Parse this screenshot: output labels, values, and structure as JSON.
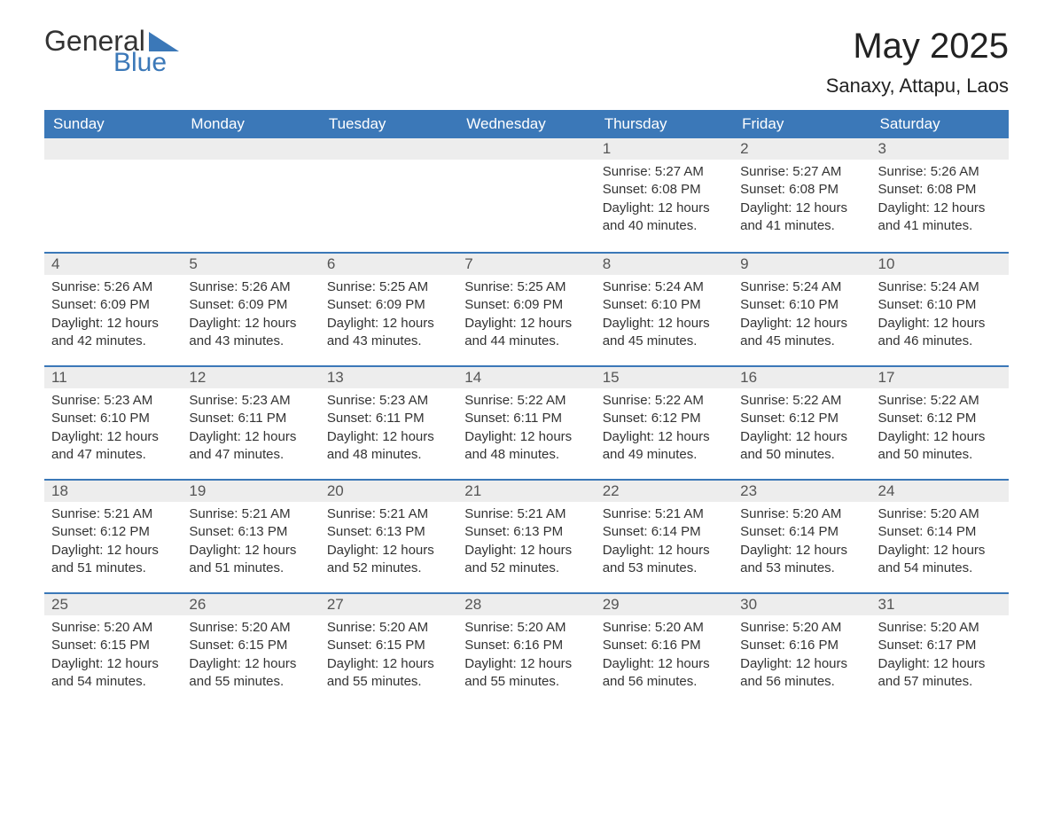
{
  "logo": {
    "word1": "General",
    "word2": "Blue",
    "triangle_color": "#3b78b8",
    "text_color_dark": "#333333",
    "text_color_blue": "#3b78b8"
  },
  "header": {
    "month_title": "May 2025",
    "location": "Sanaxy, Attapu, Laos"
  },
  "colors": {
    "header_bar": "#3b78b8",
    "header_text": "#ffffff",
    "daynum_bg": "#ededed",
    "daynum_text": "#555555",
    "week_divider": "#3b78b8",
    "body_text": "#333333",
    "background": "#ffffff"
  },
  "weekdays": [
    "Sunday",
    "Monday",
    "Tuesday",
    "Wednesday",
    "Thursday",
    "Friday",
    "Saturday"
  ],
  "weeks": [
    [
      {
        "empty": true
      },
      {
        "empty": true
      },
      {
        "empty": true
      },
      {
        "empty": true
      },
      {
        "day": "1",
        "sunrise": "Sunrise: 5:27 AM",
        "sunset": "Sunset: 6:08 PM",
        "daylight": "Daylight: 12 hours and 40 minutes."
      },
      {
        "day": "2",
        "sunrise": "Sunrise: 5:27 AM",
        "sunset": "Sunset: 6:08 PM",
        "daylight": "Daylight: 12 hours and 41 minutes."
      },
      {
        "day": "3",
        "sunrise": "Sunrise: 5:26 AM",
        "sunset": "Sunset: 6:08 PM",
        "daylight": "Daylight: 12 hours and 41 minutes."
      }
    ],
    [
      {
        "day": "4",
        "sunrise": "Sunrise: 5:26 AM",
        "sunset": "Sunset: 6:09 PM",
        "daylight": "Daylight: 12 hours and 42 minutes."
      },
      {
        "day": "5",
        "sunrise": "Sunrise: 5:26 AM",
        "sunset": "Sunset: 6:09 PM",
        "daylight": "Daylight: 12 hours and 43 minutes."
      },
      {
        "day": "6",
        "sunrise": "Sunrise: 5:25 AM",
        "sunset": "Sunset: 6:09 PM",
        "daylight": "Daylight: 12 hours and 43 minutes."
      },
      {
        "day": "7",
        "sunrise": "Sunrise: 5:25 AM",
        "sunset": "Sunset: 6:09 PM",
        "daylight": "Daylight: 12 hours and 44 minutes."
      },
      {
        "day": "8",
        "sunrise": "Sunrise: 5:24 AM",
        "sunset": "Sunset: 6:10 PM",
        "daylight": "Daylight: 12 hours and 45 minutes."
      },
      {
        "day": "9",
        "sunrise": "Sunrise: 5:24 AM",
        "sunset": "Sunset: 6:10 PM",
        "daylight": "Daylight: 12 hours and 45 minutes."
      },
      {
        "day": "10",
        "sunrise": "Sunrise: 5:24 AM",
        "sunset": "Sunset: 6:10 PM",
        "daylight": "Daylight: 12 hours and 46 minutes."
      }
    ],
    [
      {
        "day": "11",
        "sunrise": "Sunrise: 5:23 AM",
        "sunset": "Sunset: 6:10 PM",
        "daylight": "Daylight: 12 hours and 47 minutes."
      },
      {
        "day": "12",
        "sunrise": "Sunrise: 5:23 AM",
        "sunset": "Sunset: 6:11 PM",
        "daylight": "Daylight: 12 hours and 47 minutes."
      },
      {
        "day": "13",
        "sunrise": "Sunrise: 5:23 AM",
        "sunset": "Sunset: 6:11 PM",
        "daylight": "Daylight: 12 hours and 48 minutes."
      },
      {
        "day": "14",
        "sunrise": "Sunrise: 5:22 AM",
        "sunset": "Sunset: 6:11 PM",
        "daylight": "Daylight: 12 hours and 48 minutes."
      },
      {
        "day": "15",
        "sunrise": "Sunrise: 5:22 AM",
        "sunset": "Sunset: 6:12 PM",
        "daylight": "Daylight: 12 hours and 49 minutes."
      },
      {
        "day": "16",
        "sunrise": "Sunrise: 5:22 AM",
        "sunset": "Sunset: 6:12 PM",
        "daylight": "Daylight: 12 hours and 50 minutes."
      },
      {
        "day": "17",
        "sunrise": "Sunrise: 5:22 AM",
        "sunset": "Sunset: 6:12 PM",
        "daylight": "Daylight: 12 hours and 50 minutes."
      }
    ],
    [
      {
        "day": "18",
        "sunrise": "Sunrise: 5:21 AM",
        "sunset": "Sunset: 6:12 PM",
        "daylight": "Daylight: 12 hours and 51 minutes."
      },
      {
        "day": "19",
        "sunrise": "Sunrise: 5:21 AM",
        "sunset": "Sunset: 6:13 PM",
        "daylight": "Daylight: 12 hours and 51 minutes."
      },
      {
        "day": "20",
        "sunrise": "Sunrise: 5:21 AM",
        "sunset": "Sunset: 6:13 PM",
        "daylight": "Daylight: 12 hours and 52 minutes."
      },
      {
        "day": "21",
        "sunrise": "Sunrise: 5:21 AM",
        "sunset": "Sunset: 6:13 PM",
        "daylight": "Daylight: 12 hours and 52 minutes."
      },
      {
        "day": "22",
        "sunrise": "Sunrise: 5:21 AM",
        "sunset": "Sunset: 6:14 PM",
        "daylight": "Daylight: 12 hours and 53 minutes."
      },
      {
        "day": "23",
        "sunrise": "Sunrise: 5:20 AM",
        "sunset": "Sunset: 6:14 PM",
        "daylight": "Daylight: 12 hours and 53 minutes."
      },
      {
        "day": "24",
        "sunrise": "Sunrise: 5:20 AM",
        "sunset": "Sunset: 6:14 PM",
        "daylight": "Daylight: 12 hours and 54 minutes."
      }
    ],
    [
      {
        "day": "25",
        "sunrise": "Sunrise: 5:20 AM",
        "sunset": "Sunset: 6:15 PM",
        "daylight": "Daylight: 12 hours and 54 minutes."
      },
      {
        "day": "26",
        "sunrise": "Sunrise: 5:20 AM",
        "sunset": "Sunset: 6:15 PM",
        "daylight": "Daylight: 12 hours and 55 minutes."
      },
      {
        "day": "27",
        "sunrise": "Sunrise: 5:20 AM",
        "sunset": "Sunset: 6:15 PM",
        "daylight": "Daylight: 12 hours and 55 minutes."
      },
      {
        "day": "28",
        "sunrise": "Sunrise: 5:20 AM",
        "sunset": "Sunset: 6:16 PM",
        "daylight": "Daylight: 12 hours and 55 minutes."
      },
      {
        "day": "29",
        "sunrise": "Sunrise: 5:20 AM",
        "sunset": "Sunset: 6:16 PM",
        "daylight": "Daylight: 12 hours and 56 minutes."
      },
      {
        "day": "30",
        "sunrise": "Sunrise: 5:20 AM",
        "sunset": "Sunset: 6:16 PM",
        "daylight": "Daylight: 12 hours and 56 minutes."
      },
      {
        "day": "31",
        "sunrise": "Sunrise: 5:20 AM",
        "sunset": "Sunset: 6:17 PM",
        "daylight": "Daylight: 12 hours and 57 minutes."
      }
    ]
  ]
}
